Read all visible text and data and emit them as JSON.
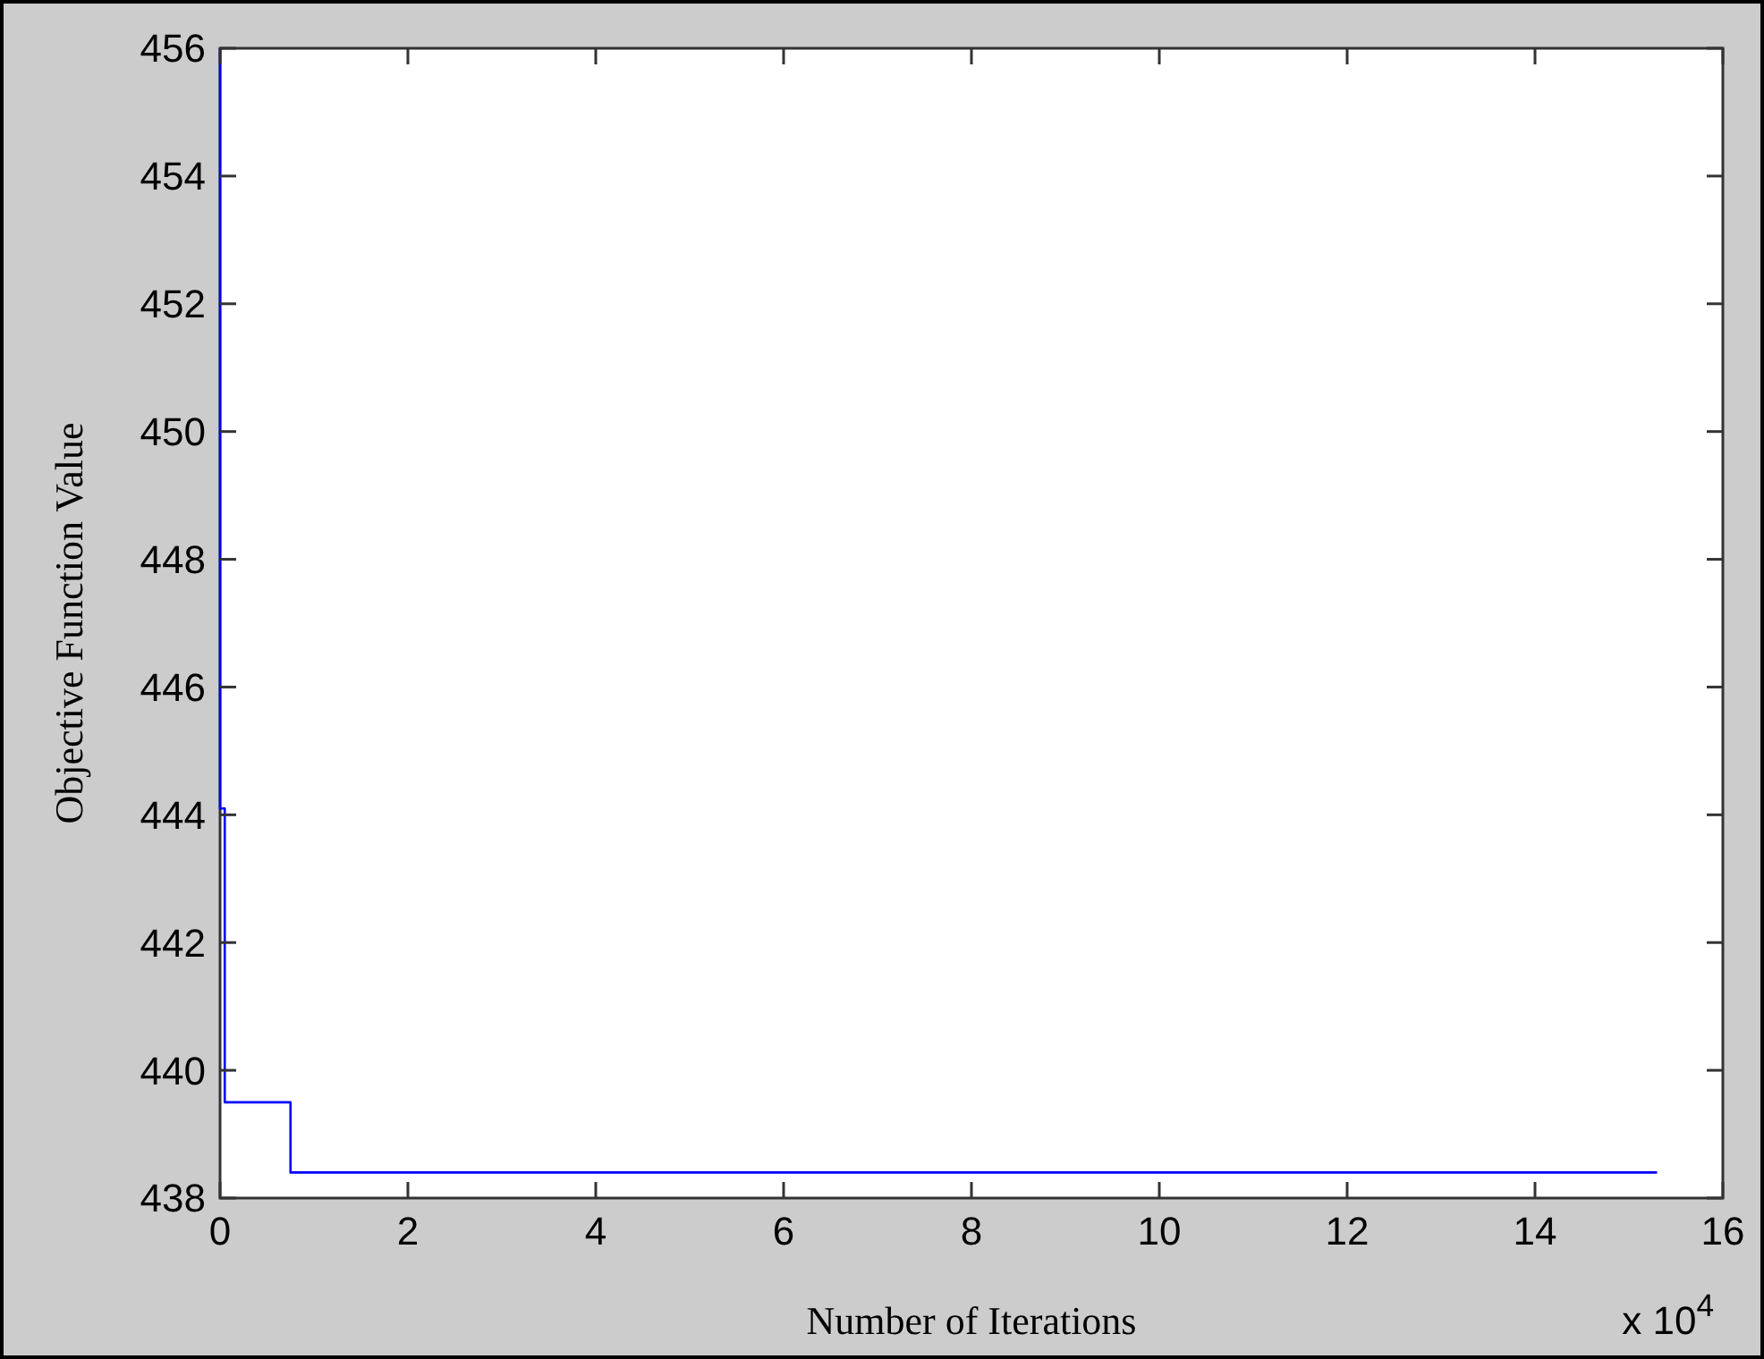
{
  "chart_data": {
    "type": "step",
    "xlabel": "Number of Iterations",
    "ylabel": "Objective Function Value",
    "annotations": [
      "x 10$^{4}$"
    ],
    "x": [
      0,
      0,
      0.05,
      0.75,
      15.3
    ],
    "series": [
      {
        "color": "#0000ff",
        "values": [
          456,
          444.1,
          439.5,
          438.4,
          438.4
        ]
      }
    ],
    "xlim": [
      0,
      16
    ],
    "xticks": [
      0,
      2,
      4,
      6,
      8,
      10,
      12,
      14,
      16
    ],
    "ylim": [
      438,
      456
    ],
    "yticks": [
      438,
      440,
      442,
      444,
      446,
      448,
      450,
      452,
      454,
      456
    ],
    "grid": false,
    "marker": "none",
    "line_style": "solid"
  }
}
